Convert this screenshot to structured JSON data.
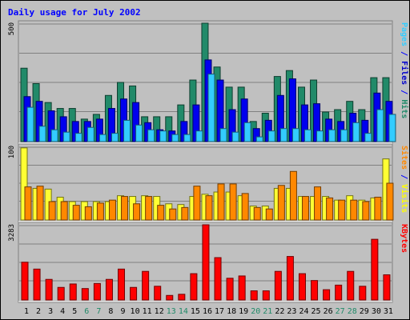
{
  "chart_data": {
    "type": "bar",
    "title": "Daily usage for July 2002",
    "days": [
      "1",
      "2",
      "3",
      "4",
      "5",
      "6",
      "7",
      "8",
      "9",
      "10",
      "11",
      "12",
      "13",
      "14",
      "15",
      "16",
      "17",
      "18",
      "19",
      "20",
      "21",
      "22",
      "23",
      "24",
      "25",
      "26",
      "27",
      "28",
      "29",
      "30",
      "31"
    ],
    "weekend_days": [
      "6",
      "7",
      "13",
      "14",
      "20",
      "21",
      "27",
      "28"
    ],
    "panels": [
      {
        "id": "hits-panel",
        "ymax_label": "500",
        "ymax": 500,
        "right_labels": [
          {
            "text": "Pages",
            "color": "#33ccff"
          },
          {
            "text": " / ",
            "color": "#0000ff"
          },
          {
            "text": "Files",
            "color": "#0000cc"
          },
          {
            "text": " / ",
            "color": "#0000ff"
          },
          {
            "text": "Hits",
            "color": "#218a69"
          }
        ],
        "series": [
          {
            "name": "Hits",
            "color": "#218a69",
            "values": [
              310,
              245,
              165,
              140,
              140,
              95,
              115,
              195,
              250,
              235,
              105,
              105,
              105,
              155,
              260,
              500,
              315,
              230,
              230,
              85,
              120,
              275,
              300,
              230,
              260,
              125,
              135,
              170,
              135,
              270,
              270
            ]
          },
          {
            "name": "Files",
            "color": "#0000ee",
            "values": [
              190,
              170,
              130,
              105,
              85,
              85,
              95,
              140,
              180,
              165,
              80,
              50,
              45,
              85,
              155,
              345,
              260,
              135,
              180,
              55,
              90,
              195,
              265,
              155,
              160,
              95,
              85,
              120,
              90,
              205,
              170
            ]
          },
          {
            "name": "Pages",
            "color": "#33ccff",
            "values": [
              145,
              65,
              50,
              40,
              35,
              60,
              30,
              35,
              90,
              70,
              50,
              45,
              30,
              30,
              45,
              285,
              55,
              40,
              80,
              20,
              45,
              55,
              55,
              50,
              45,
              50,
              50,
              80,
              35,
              135,
              115
            ]
          }
        ]
      },
      {
        "id": "visits-panel",
        "ymax_label": "100",
        "ymax": 100,
        "right_labels": [
          {
            "text": "Sites",
            "color": "#ff8800"
          },
          {
            "text": " / ",
            "color": "#0000ff"
          },
          {
            "text": "Visits",
            "color": "#ffff00"
          }
        ],
        "series": [
          {
            "name": "Visits",
            "color": "#ffff33",
            "values": [
              98,
              43,
              42,
              31,
              25,
              25,
              25,
              25,
              33,
              32,
              33,
              32,
              22,
              21,
              32,
              35,
              38,
              38,
              33,
              19,
              19,
              43,
              43,
              32,
              32,
              32,
              27,
              33,
              27,
              30,
              83
            ]
          },
          {
            "name": "Sites",
            "color": "#ff8800",
            "values": [
              45,
              46,
              25,
              25,
              20,
              18,
              23,
              27,
              32,
              22,
              32,
              20,
              15,
              17,
              46,
              33,
              49,
              49,
              36,
              17,
              15,
              47,
              66,
              32,
              45,
              30,
              27,
              27,
              25,
              31,
              50
            ]
          }
        ]
      },
      {
        "id": "kbytes-panel",
        "ymax_label": "3283",
        "ymax": 3283,
        "right_labels": [
          {
            "text": "KBytes",
            "color": "#ff0000"
          }
        ],
        "series": [
          {
            "name": "KBytes",
            "color": "#ff0000",
            "values": [
              1650,
              1350,
              900,
              550,
              700,
              500,
              720,
              900,
              1350,
              550,
              1250,
              600,
              200,
              250,
              1150,
              3283,
              1850,
              950,
              1050,
              400,
              400,
              1250,
              1900,
              1150,
              850,
              450,
              650,
              1250,
              600,
              2650,
              1100
            ]
          }
        ]
      }
    ]
  }
}
